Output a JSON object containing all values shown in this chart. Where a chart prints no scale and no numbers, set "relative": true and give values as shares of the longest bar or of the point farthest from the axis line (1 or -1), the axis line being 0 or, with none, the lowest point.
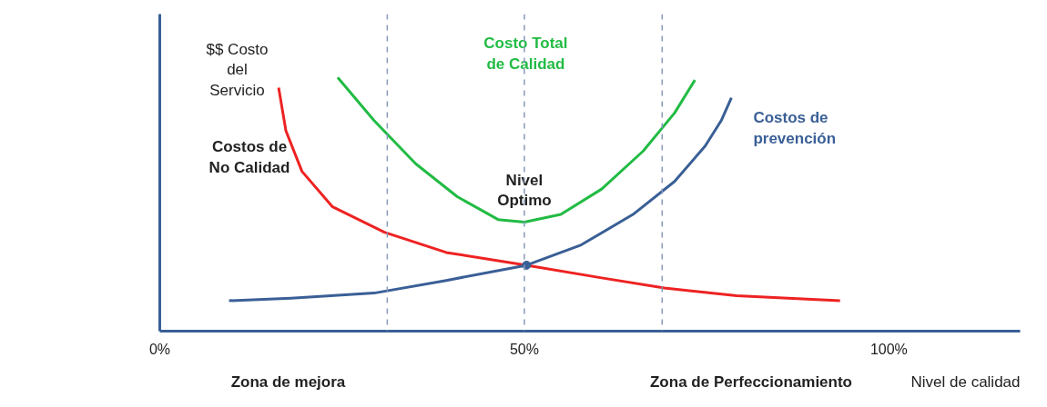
{
  "chart_data": {
    "type": "line",
    "relative": true,
    "ylabel": "$$ Costo del Servicio",
    "xlabel": "Nivel de calidad",
    "xlim": [
      0,
      118
    ],
    "xticks": [
      {
        "value": 0,
        "label": "0%"
      },
      {
        "value": 50,
        "label": "50%"
      },
      {
        "value": 100,
        "label": "100%"
      }
    ],
    "grid": false,
    "marker": "none",
    "line_style": "solid",
    "series": [
      {
        "name": "Costos de No Calidad",
        "color": "#ee2222",
        "x": [
          16.3,
          17.3,
          19.5,
          23.7,
          30.8,
          39.3,
          50.3,
          60.6,
          69.2,
          79.1,
          93.3
        ],
        "values": [
          0.96,
          0.79,
          0.63,
          0.49,
          0.39,
          0.31,
          0.26,
          0.21,
          0.17,
          0.14,
          0.12
        ]
      },
      {
        "name": "Costos de prevención",
        "color": "#3a5f96",
        "x": [
          9.5,
          18,
          29.4,
          39.3,
          50.3,
          57.8,
          64.9,
          70.6,
          74.8,
          77,
          78.4
        ],
        "values": [
          0.12,
          0.13,
          0.15,
          0.2,
          0.26,
          0.34,
          0.46,
          0.59,
          0.73,
          0.83,
          0.92
        ]
      },
      {
        "name": "Costo Total de Calidad",
        "color": "#22bb44",
        "x": [
          24.4,
          29.4,
          35.1,
          40.8,
          46.4,
          50,
          55,
          60.6,
          66.3,
          70.6,
          73.4
        ],
        "values": [
          1,
          0.83,
          0.66,
          0.53,
          0.44,
          0.43,
          0.46,
          0.56,
          0.71,
          0.86,
          0.99
        ]
      },
      {
        "type": "scatter",
        "marker": "circle",
        "color": "#3a5f96",
        "x": [
          50.3
        ],
        "values": [
          0.26
        ]
      }
    ],
    "ref_lines": [
      {
        "axis": "x",
        "value": 31.2,
        "color": "#8899bb",
        "line_style": "dashed"
      },
      {
        "axis": "x",
        "value": 50,
        "color": "#8899bb",
        "line_style": "dashed"
      },
      {
        "axis": "x",
        "value": 68.9,
        "color": "#8899bb",
        "line_style": "dashed"
      }
    ],
    "annotations": [
      {
        "text": "Nivel Optimo",
        "x": 50,
        "y": 0.43
      },
      "Zona de mejora",
      "Zona de Perfeccionamiento"
    ]
  }
}
